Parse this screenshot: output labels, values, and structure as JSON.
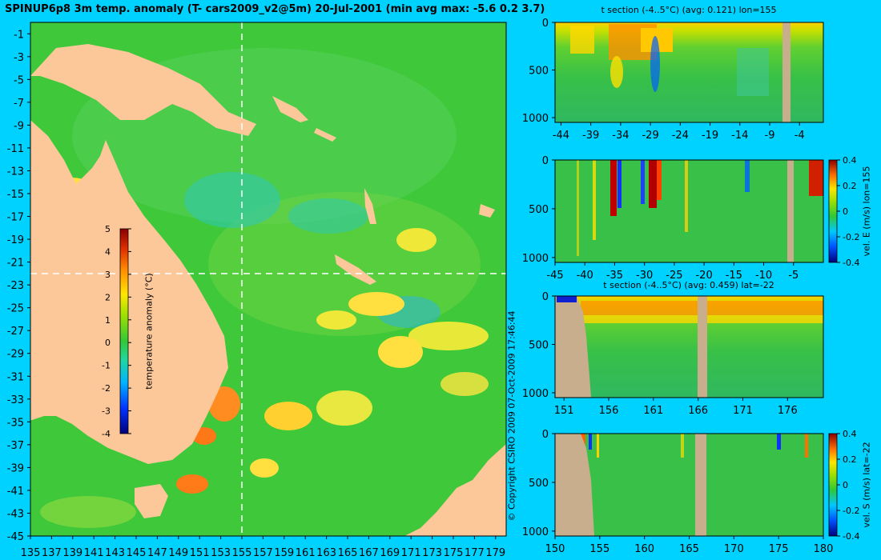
{
  "main": {
    "title": "SPINUP6p8 3m temp. anomaly (T- cars2009_v2@5m) 20-Jul-2001 (min avg max: -5.6 0.2 3.7)",
    "x_ticks": [
      "135",
      "137",
      "139",
      "141",
      "143",
      "145",
      "147",
      "149",
      "151",
      "153",
      "155",
      "157",
      "159",
      "161",
      "163",
      "165",
      "167",
      "169",
      "171",
      "173",
      "175",
      "177",
      "179"
    ],
    "y_ticks": [
      "-1",
      "-3",
      "-5",
      "-7",
      "-9",
      "-11",
      "-13",
      "-15",
      "-17",
      "-19",
      "-21",
      "-23",
      "-25",
      "-27",
      "-29",
      "-31",
      "-33",
      "-35",
      "-37",
      "-39",
      "-41",
      "-43",
      "-45"
    ],
    "colorbar": {
      "label": "temperature anomaly (°C)",
      "ticks": [
        "5",
        "4",
        "3",
        "2",
        "1",
        "0",
        "-1",
        "-2",
        "-3",
        "-4"
      ]
    },
    "section_lines": {
      "lon": 155,
      "lat": -22
    }
  },
  "copyright": "© Copyright CSIRO 2009   07-Oct-2009 17:46:44",
  "panels": [
    {
      "id": "p1",
      "title": "t section (-4..5°C) (avg: 0.121) lon=155",
      "x_ticks": [
        "-44",
        "-39",
        "-34",
        "-29",
        "-24",
        "-19",
        "-14",
        "-9",
        "-4"
      ],
      "y_ticks": [
        "0",
        "500",
        "1000"
      ],
      "colorbar": null
    },
    {
      "id": "p2",
      "title": "",
      "x_ticks": [
        "-45",
        "-40",
        "-35",
        "-30",
        "-25",
        "-20",
        "-15",
        "-10",
        "-5"
      ],
      "y_ticks": [
        "0",
        "500",
        "1000"
      ],
      "colorbar": {
        "label": "vel. E (m/s) lon=155",
        "ticks": [
          "0.4",
          "0.2",
          "0",
          "-0.2",
          "-0.4"
        ]
      }
    },
    {
      "id": "p3",
      "title": "t section (-4..5°C) (avg: 0.459) lat=-22",
      "x_ticks": [
        "151",
        "156",
        "161",
        "166",
        "171",
        "176"
      ],
      "y_ticks": [
        "0",
        "500",
        "1000"
      ],
      "colorbar": null
    },
    {
      "id": "p4",
      "title": "",
      "x_ticks": [
        "150",
        "155",
        "160",
        "165",
        "170",
        "175",
        "180"
      ],
      "y_ticks": [
        "0",
        "500",
        "1000"
      ],
      "colorbar": {
        "label": "vel. S (m/s) lat=-22",
        "ticks": [
          "0.4",
          "0.2",
          "0",
          "-0.2",
          "-0.4"
        ]
      }
    }
  ],
  "chart_data": [
    {
      "type": "heatmap",
      "title": "SPINUP6p8 3m temp. anomaly (T- cars2009_v2@5m) 20-Jul-2001 (min avg max: -5.6 0.2 3.7)",
      "xlim": [
        135,
        180
      ],
      "ylim": [
        -45,
        0
      ],
      "value_range": [
        -4,
        5
      ],
      "min": -5.6,
      "avg": 0.2,
      "max": 3.7
    },
    {
      "type": "heatmap",
      "title": "t section (-4..5°C) (avg: 0.121) lon=155",
      "xlim": [
        -45,
        0
      ],
      "ylim": [
        1050,
        0
      ],
      "avg": 0.121
    },
    {
      "type": "heatmap",
      "xlim": [
        -45,
        0
      ],
      "ylim": [
        1050,
        0
      ],
      "value_range": [
        -0.4,
        0.4
      ]
    },
    {
      "type": "heatmap",
      "title": "t section (-4..5°C) (avg: 0.459) lat=-22",
      "xlim": [
        150,
        180
      ],
      "ylim": [
        1050,
        0
      ],
      "avg": 0.459
    },
    {
      "type": "heatmap",
      "xlim": [
        150,
        180
      ],
      "ylim": [
        1050,
        0
      ],
      "value_range": [
        -0.4,
        0.4
      ]
    }
  ],
  "colors": {
    "background": "#00d2ff",
    "land": "#fcc89a",
    "ocean": "#3ec83a",
    "section_land": "#c8ae8c"
  }
}
